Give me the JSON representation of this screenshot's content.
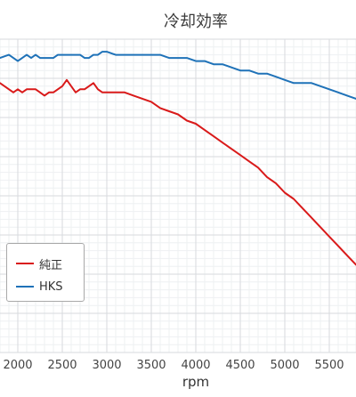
{
  "chart_data": {
    "type": "line",
    "title": "冷却効率",
    "xlabel": "rpm",
    "ylabel": "",
    "xlim": [
      1800,
      5800
    ],
    "ylim": [
      0,
      100
    ],
    "x_ticks": [
      2000,
      2500,
      3000,
      3500,
      4000,
      4500,
      5000,
      5500
    ],
    "grid": true,
    "legend_position": "bottom-left",
    "x": [
      1800,
      1900,
      1950,
      2000,
      2050,
      2100,
      2150,
      2200,
      2250,
      2300,
      2350,
      2400,
      2450,
      2500,
      2550,
      2600,
      2650,
      2700,
      2750,
      2800,
      2850,
      2900,
      2950,
      3000,
      3100,
      3200,
      3300,
      3400,
      3500,
      3600,
      3700,
      3800,
      3900,
      4000,
      4100,
      4200,
      4300,
      4400,
      4500,
      4600,
      4700,
      4800,
      4900,
      5000,
      5100,
      5200,
      5300,
      5400,
      5500,
      5600,
      5700,
      5800
    ],
    "series": [
      {
        "name": "純正",
        "color": "#d91a1a",
        "values": [
          86,
          84,
          83,
          84,
          83,
          84,
          84,
          84,
          83,
          82,
          83,
          83,
          84,
          85,
          87,
          85,
          83,
          84,
          84,
          85,
          86,
          84,
          83,
          83,
          83,
          83,
          82,
          81,
          80,
          78,
          77,
          76,
          74,
          73,
          71,
          69,
          67,
          65,
          63,
          61,
          59,
          56,
          54,
          51,
          49,
          46,
          43,
          40,
          37,
          34,
          31,
          28
        ]
      },
      {
        "name": "HKS",
        "color": "#1f72b8",
        "values": [
          94,
          95,
          94,
          93,
          94,
          95,
          94,
          95,
          94,
          94,
          94,
          94,
          95,
          95,
          95,
          95,
          95,
          95,
          94,
          94,
          95,
          95,
          96,
          96,
          95,
          95,
          95,
          95,
          95,
          95,
          94,
          94,
          94,
          93,
          93,
          92,
          92,
          91,
          90,
          90,
          89,
          89,
          88,
          87,
          86,
          86,
          86,
          85,
          84,
          83,
          82,
          81
        ]
      }
    ]
  },
  "legend": {
    "items": [
      {
        "label": "純正",
        "color": "#d91a1a"
      },
      {
        "label": "HKS",
        "color": "#1f72b8"
      }
    ]
  }
}
